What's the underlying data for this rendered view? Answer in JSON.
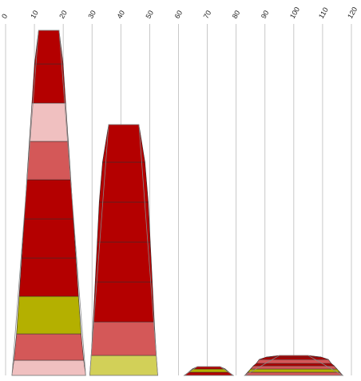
{
  "chart_data": {
    "type": "area",
    "title": "",
    "xlabel": "",
    "ylabel": "",
    "x_ticks": [
      "0",
      "10",
      "20",
      "30",
      "40",
      "50",
      "60",
      "70",
      "80",
      "90",
      "100",
      "110",
      "120"
    ],
    "xlim": [
      0,
      120
    ],
    "grid": "vertical",
    "legend": "none",
    "colors": {
      "dark_red": "#b40000",
      "light_pink": "#f0c0c0",
      "salmon": "#d45858",
      "olive": "#b4b000",
      "yellow": "#d2d058",
      "gridline": "#bbbbbb",
      "outline": "#888888"
    },
    "stacks": [
      {
        "segments": [
          {
            "color": "light_pink",
            "bottom_width": 25.6,
            "top_width": 24.2
          },
          {
            "color": "salmon",
            "bottom_width": 24.2,
            "top_width": 22.4
          },
          {
            "color": "olive",
            "bottom_width": 22.4,
            "top_width": 20.6
          },
          {
            "color": "dark_red",
            "bottom_width": 20.6,
            "top_width": 18.8
          },
          {
            "color": "dark_red",
            "bottom_width": 18.8,
            "top_width": 17.0
          },
          {
            "color": "dark_red",
            "bottom_width": 17.0,
            "top_width": 15.3
          },
          {
            "color": "salmon",
            "bottom_width": 15.3,
            "top_width": 13.5
          },
          {
            "color": "light_pink",
            "bottom_width": 13.5,
            "top_width": 11.7
          },
          {
            "color": "dark_red",
            "bottom_width": 11.7,
            "top_width": 9.9
          },
          {
            "color": "dark_red",
            "bottom_width": 9.9,
            "top_width": 7.1
          }
        ]
      },
      {
        "segments": [
          {
            "color": "yellow",
            "bottom_width": 23.6,
            "top_width": 22.6
          },
          {
            "color": "salmon",
            "bottom_width": 22.6,
            "top_width": 21.2
          },
          {
            "color": "dark_red",
            "bottom_width": 21.2,
            "top_width": 19.8
          },
          {
            "color": "dark_red",
            "bottom_width": 19.8,
            "top_width": 18.4
          },
          {
            "color": "dark_red",
            "bottom_width": 18.4,
            "top_width": 17.0
          },
          {
            "color": "dark_red",
            "bottom_width": 17.0,
            "top_width": 14.7
          },
          {
            "color": "dark_red",
            "bottom_width": 14.7,
            "top_width": 10.5
          }
        ]
      },
      {
        "segments": [
          {
            "color": "dark_red",
            "bottom_width": 17.0,
            "top_width": 14.0
          },
          {
            "color": "olive",
            "bottom_width": 14.0,
            "top_width": 11.5
          },
          {
            "color": "dark_red",
            "bottom_width": 11.5,
            "top_width": 8.0
          }
        ]
      },
      {
        "segments": [
          {
            "color": "salmon",
            "bottom_width": 34.0,
            "top_width": 32.0
          },
          {
            "color": "olive",
            "bottom_width": 32.0,
            "top_width": 30.0
          },
          {
            "color": "salmon",
            "bottom_width": 30.0,
            "top_width": 28.0
          },
          {
            "color": "dark_red",
            "bottom_width": 28.0,
            "top_width": 26.0
          },
          {
            "color": "salmon",
            "bottom_width": 26.0,
            "top_width": 24.0
          },
          {
            "color": "dark_red",
            "bottom_width": 24.0,
            "top_width": 19.0
          },
          {
            "color": "dark_red",
            "bottom_width": 19.0,
            "top_width": 10.0
          }
        ]
      }
    ]
  }
}
